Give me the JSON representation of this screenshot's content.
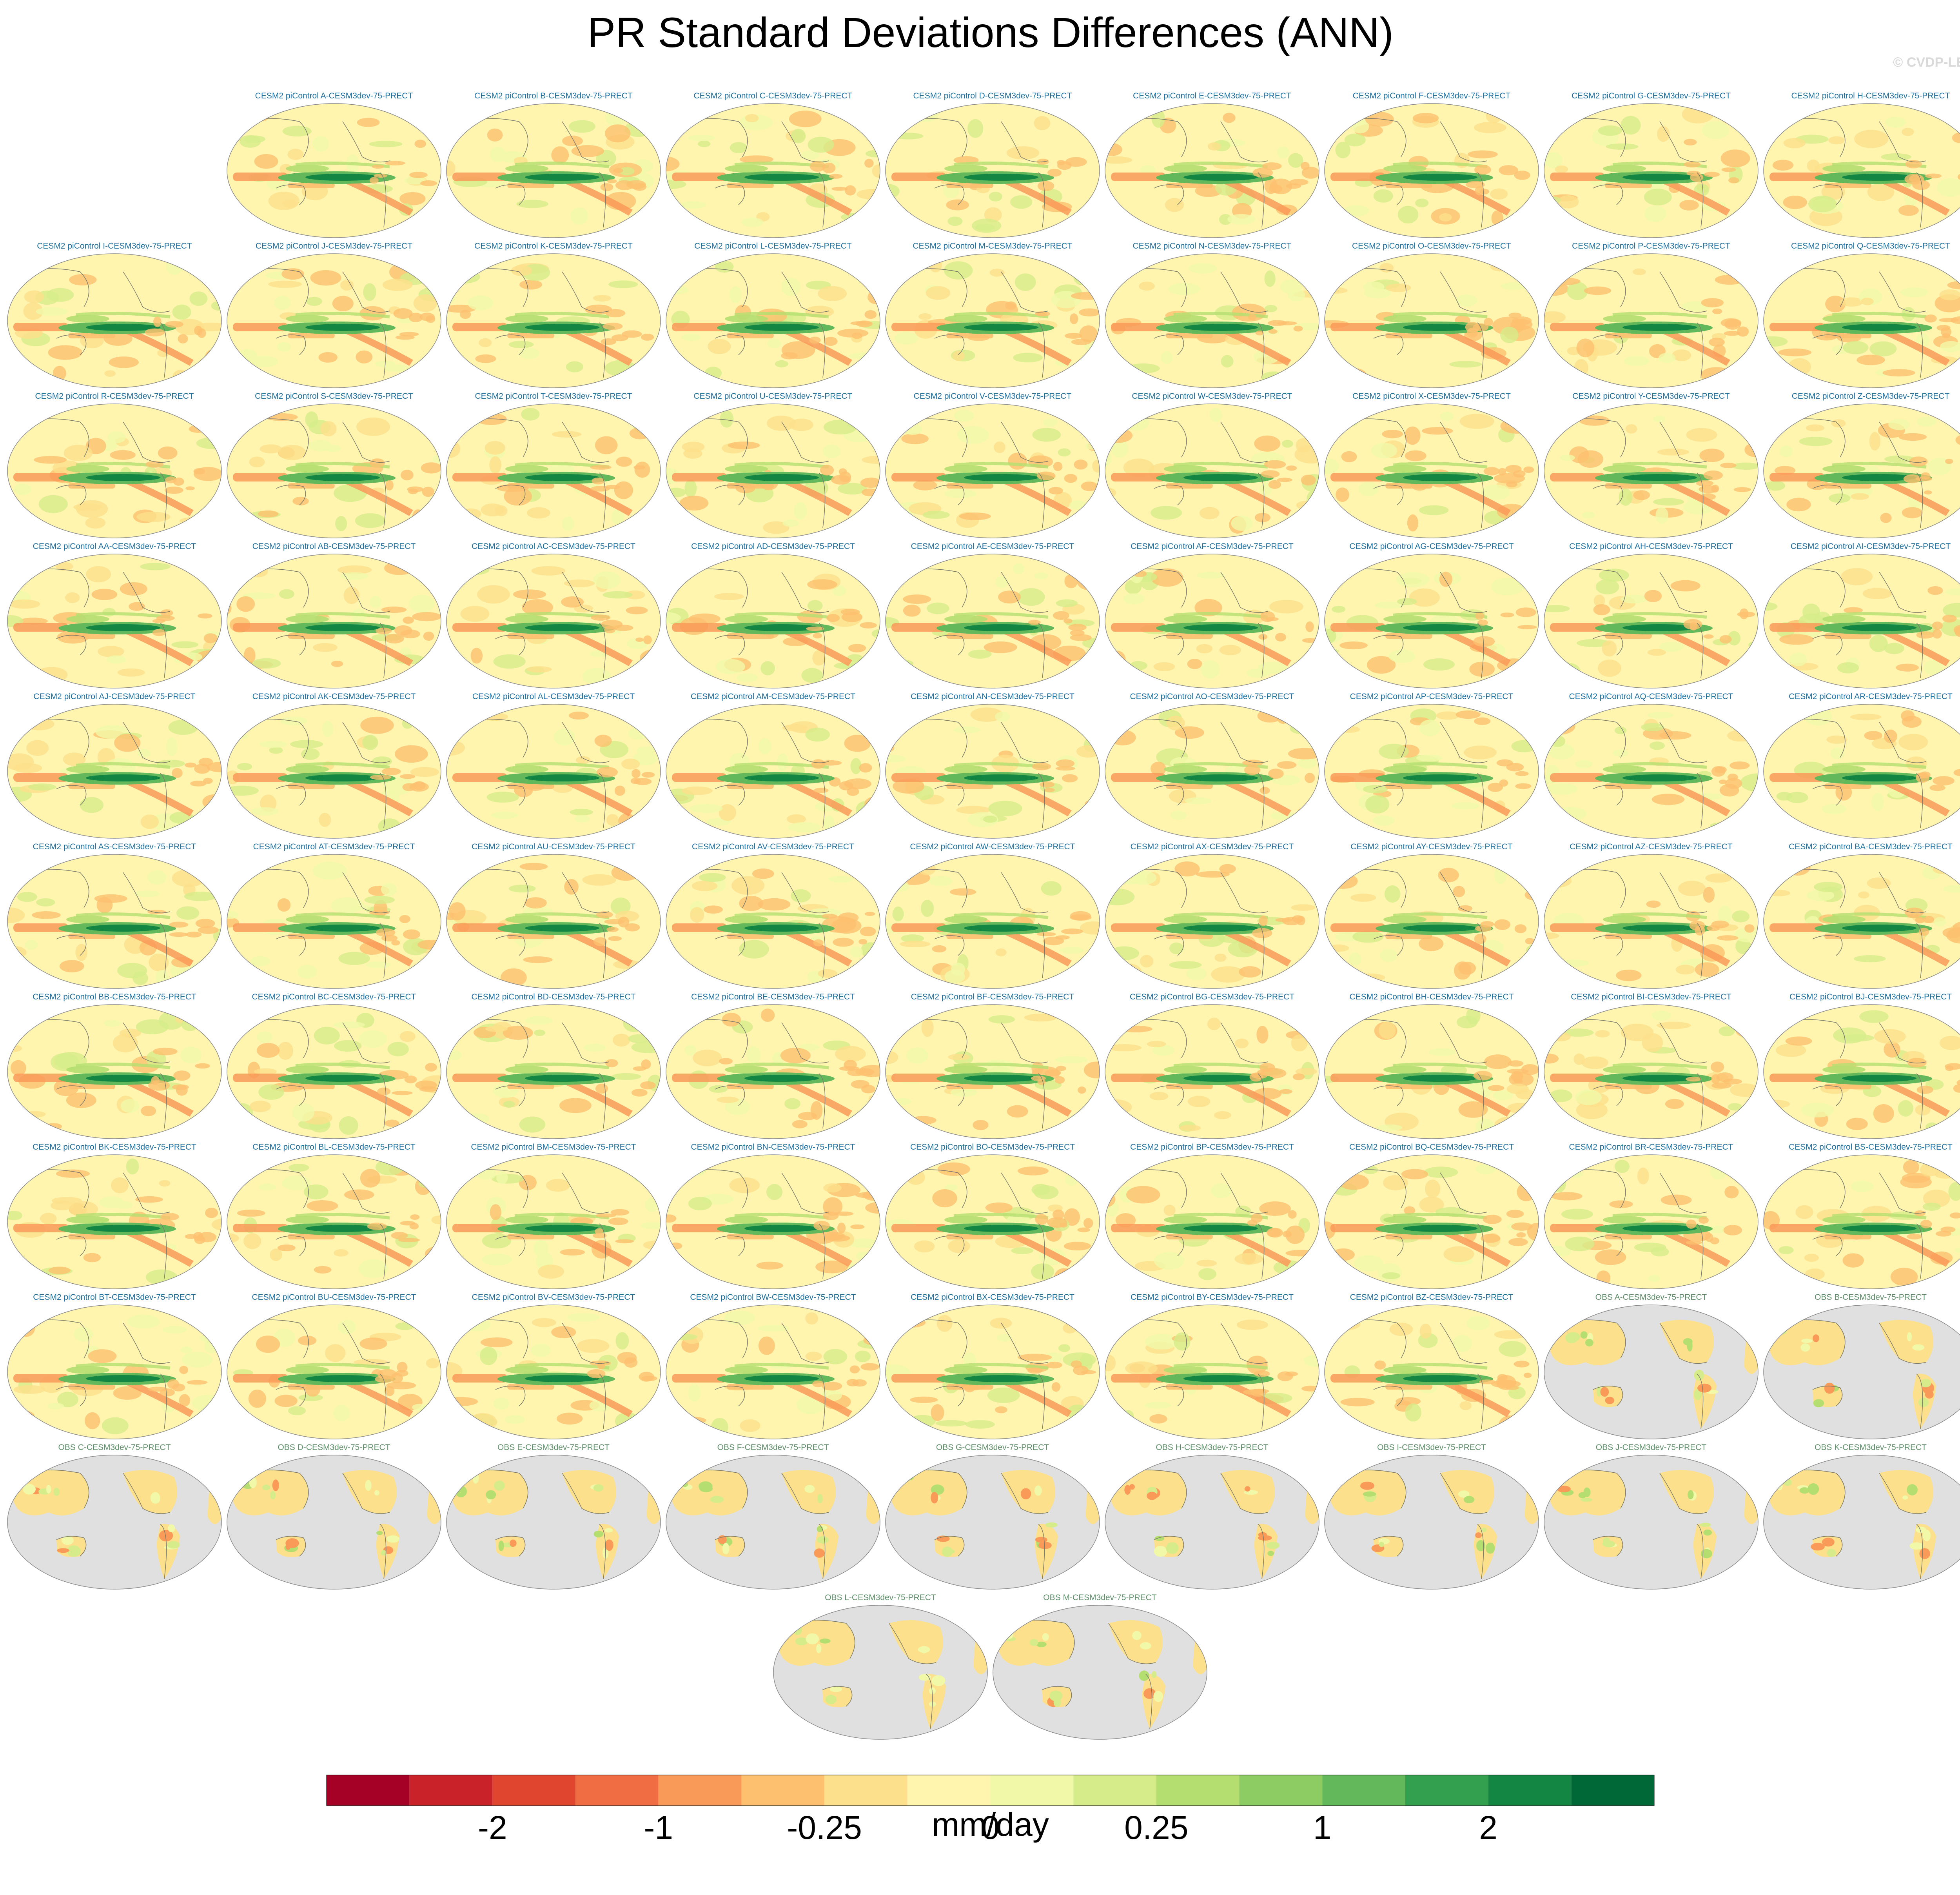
{
  "title": "PR Standard Deviations Differences (ANN)",
  "credit": "© CVDP-LE",
  "chart_data": {
    "type": "heatmap",
    "description_kind": "panel grid of global map differences",
    "variable": "PR standard deviation difference",
    "season": "ANN",
    "panels": [
      {
        "label": "CESM2 piControl A-CESM3dev-75-PRECT",
        "kind": "model"
      },
      {
        "label": "CESM2 piControl B-CESM3dev-75-PRECT",
        "kind": "model"
      },
      {
        "label": "CESM2 piControl C-CESM3dev-75-PRECT",
        "kind": "model"
      },
      {
        "label": "CESM2 piControl D-CESM3dev-75-PRECT",
        "kind": "model"
      },
      {
        "label": "CESM2 piControl E-CESM3dev-75-PRECT",
        "kind": "model"
      },
      {
        "label": "CESM2 piControl F-CESM3dev-75-PRECT",
        "kind": "model"
      },
      {
        "label": "CESM2 piControl G-CESM3dev-75-PRECT",
        "kind": "model"
      },
      {
        "label": "CESM2 piControl H-CESM3dev-75-PRECT",
        "kind": "model"
      },
      {
        "label": "CESM2 piControl I-CESM3dev-75-PRECT",
        "kind": "model"
      },
      {
        "label": "CESM2 piControl J-CESM3dev-75-PRECT",
        "kind": "model"
      },
      {
        "label": "CESM2 piControl K-CESM3dev-75-PRECT",
        "kind": "model"
      },
      {
        "label": "CESM2 piControl L-CESM3dev-75-PRECT",
        "kind": "model"
      },
      {
        "label": "CESM2 piControl M-CESM3dev-75-PRECT",
        "kind": "model"
      },
      {
        "label": "CESM2 piControl N-CESM3dev-75-PRECT",
        "kind": "model"
      },
      {
        "label": "CESM2 piControl O-CESM3dev-75-PRECT",
        "kind": "model"
      },
      {
        "label": "CESM2 piControl P-CESM3dev-75-PRECT",
        "kind": "model"
      },
      {
        "label": "CESM2 piControl Q-CESM3dev-75-PRECT",
        "kind": "model"
      },
      {
        "label": "CESM2 piControl R-CESM3dev-75-PRECT",
        "kind": "model"
      },
      {
        "label": "CESM2 piControl S-CESM3dev-75-PRECT",
        "kind": "model"
      },
      {
        "label": "CESM2 piControl T-CESM3dev-75-PRECT",
        "kind": "model"
      },
      {
        "label": "CESM2 piControl U-CESM3dev-75-PRECT",
        "kind": "model"
      },
      {
        "label": "CESM2 piControl V-CESM3dev-75-PRECT",
        "kind": "model"
      },
      {
        "label": "CESM2 piControl W-CESM3dev-75-PRECT",
        "kind": "model"
      },
      {
        "label": "CESM2 piControl X-CESM3dev-75-PRECT",
        "kind": "model"
      },
      {
        "label": "CESM2 piControl Y-CESM3dev-75-PRECT",
        "kind": "model"
      },
      {
        "label": "CESM2 piControl Z-CESM3dev-75-PRECT",
        "kind": "model"
      },
      {
        "label": "CESM2 piControl AA-CESM3dev-75-PRECT",
        "kind": "model"
      },
      {
        "label": "CESM2 piControl AB-CESM3dev-75-PRECT",
        "kind": "model"
      },
      {
        "label": "CESM2 piControl AC-CESM3dev-75-PRECT",
        "kind": "model"
      },
      {
        "label": "CESM2 piControl AD-CESM3dev-75-PRECT",
        "kind": "model"
      },
      {
        "label": "CESM2 piControl AE-CESM3dev-75-PRECT",
        "kind": "model"
      },
      {
        "label": "CESM2 piControl AF-CESM3dev-75-PRECT",
        "kind": "model"
      },
      {
        "label": "CESM2 piControl AG-CESM3dev-75-PRECT",
        "kind": "model"
      },
      {
        "label": "CESM2 piControl AH-CESM3dev-75-PRECT",
        "kind": "model"
      },
      {
        "label": "CESM2 piControl AI-CESM3dev-75-PRECT",
        "kind": "model"
      },
      {
        "label": "CESM2 piControl AJ-CESM3dev-75-PRECT",
        "kind": "model"
      },
      {
        "label": "CESM2 piControl AK-CESM3dev-75-PRECT",
        "kind": "model"
      },
      {
        "label": "CESM2 piControl AL-CESM3dev-75-PRECT",
        "kind": "model"
      },
      {
        "label": "CESM2 piControl AM-CESM3dev-75-PRECT",
        "kind": "model"
      },
      {
        "label": "CESM2 piControl AN-CESM3dev-75-PRECT",
        "kind": "model"
      },
      {
        "label": "CESM2 piControl AO-CESM3dev-75-PRECT",
        "kind": "model"
      },
      {
        "label": "CESM2 piControl AP-CESM3dev-75-PRECT",
        "kind": "model"
      },
      {
        "label": "CESM2 piControl AQ-CESM3dev-75-PRECT",
        "kind": "model"
      },
      {
        "label": "CESM2 piControl AR-CESM3dev-75-PRECT",
        "kind": "model"
      },
      {
        "label": "CESM2 piControl AS-CESM3dev-75-PRECT",
        "kind": "model"
      },
      {
        "label": "CESM2 piControl AT-CESM3dev-75-PRECT",
        "kind": "model"
      },
      {
        "label": "CESM2 piControl AU-CESM3dev-75-PRECT",
        "kind": "model"
      },
      {
        "label": "CESM2 piControl AV-CESM3dev-75-PRECT",
        "kind": "model"
      },
      {
        "label": "CESM2 piControl AW-CESM3dev-75-PRECT",
        "kind": "model"
      },
      {
        "label": "CESM2 piControl AX-CESM3dev-75-PRECT",
        "kind": "model"
      },
      {
        "label": "CESM2 piControl AY-CESM3dev-75-PRECT",
        "kind": "model"
      },
      {
        "label": "CESM2 piControl AZ-CESM3dev-75-PRECT",
        "kind": "model"
      },
      {
        "label": "CESM2 piControl BA-CESM3dev-75-PRECT",
        "kind": "model"
      },
      {
        "label": "CESM2 piControl BB-CESM3dev-75-PRECT",
        "kind": "model"
      },
      {
        "label": "CESM2 piControl BC-CESM3dev-75-PRECT",
        "kind": "model"
      },
      {
        "label": "CESM2 piControl BD-CESM3dev-75-PRECT",
        "kind": "model"
      },
      {
        "label": "CESM2 piControl BE-CESM3dev-75-PRECT",
        "kind": "model"
      },
      {
        "label": "CESM2 piControl BF-CESM3dev-75-PRECT",
        "kind": "model"
      },
      {
        "label": "CESM2 piControl BG-CESM3dev-75-PRECT",
        "kind": "model"
      },
      {
        "label": "CESM2 piControl BH-CESM3dev-75-PRECT",
        "kind": "model"
      },
      {
        "label": "CESM2 piControl BI-CESM3dev-75-PRECT",
        "kind": "model"
      },
      {
        "label": "CESM2 piControl BJ-CESM3dev-75-PRECT",
        "kind": "model"
      },
      {
        "label": "CESM2 piControl BK-CESM3dev-75-PRECT",
        "kind": "model"
      },
      {
        "label": "CESM2 piControl BL-CESM3dev-75-PRECT",
        "kind": "model"
      },
      {
        "label": "CESM2 piControl BM-CESM3dev-75-PRECT",
        "kind": "model"
      },
      {
        "label": "CESM2 piControl BN-CESM3dev-75-PRECT",
        "kind": "model"
      },
      {
        "label": "CESM2 piControl BO-CESM3dev-75-PRECT",
        "kind": "model"
      },
      {
        "label": "CESM2 piControl BP-CESM3dev-75-PRECT",
        "kind": "model"
      },
      {
        "label": "CESM2 piControl BQ-CESM3dev-75-PRECT",
        "kind": "model"
      },
      {
        "label": "CESM2 piControl BR-CESM3dev-75-PRECT",
        "kind": "model"
      },
      {
        "label": "CESM2 piControl BS-CESM3dev-75-PRECT",
        "kind": "model"
      },
      {
        "label": "CESM2 piControl BT-CESM3dev-75-PRECT",
        "kind": "model"
      },
      {
        "label": "CESM2 piControl BU-CESM3dev-75-PRECT",
        "kind": "model"
      },
      {
        "label": "CESM2 piControl BV-CESM3dev-75-PRECT",
        "kind": "model"
      },
      {
        "label": "CESM2 piControl BW-CESM3dev-75-PRECT",
        "kind": "model"
      },
      {
        "label": "CESM2 piControl BX-CESM3dev-75-PRECT",
        "kind": "model"
      },
      {
        "label": "CESM2 piControl BY-CESM3dev-75-PRECT",
        "kind": "model"
      },
      {
        "label": "CESM2 piControl BZ-CESM3dev-75-PRECT",
        "kind": "model"
      },
      {
        "label": "OBS A-CESM3dev-75-PRECT",
        "kind": "obs"
      },
      {
        "label": "OBS B-CESM3dev-75-PRECT",
        "kind": "obs"
      },
      {
        "label": "OBS C-CESM3dev-75-PRECT",
        "kind": "obs"
      },
      {
        "label": "OBS D-CESM3dev-75-PRECT",
        "kind": "obs"
      },
      {
        "label": "OBS E-CESM3dev-75-PRECT",
        "kind": "obs"
      },
      {
        "label": "OBS F-CESM3dev-75-PRECT",
        "kind": "obs"
      },
      {
        "label": "OBS G-CESM3dev-75-PRECT",
        "kind": "obs"
      },
      {
        "label": "OBS H-CESM3dev-75-PRECT",
        "kind": "obs"
      },
      {
        "label": "OBS I-CESM3dev-75-PRECT",
        "kind": "obs"
      },
      {
        "label": "OBS J-CESM3dev-75-PRECT",
        "kind": "obs"
      },
      {
        "label": "OBS K-CESM3dev-75-PRECT",
        "kind": "obs"
      },
      {
        "label": "OBS L-CESM3dev-75-PRECT",
        "kind": "obs"
      },
      {
        "label": "OBS M-CESM3dev-75-PRECT",
        "kind": "obs"
      }
    ],
    "colorbar": {
      "units": "mm/day",
      "tick_labels": [
        "-2",
        "-1",
        "-0.25",
        "0",
        "0.25",
        "1",
        "2"
      ],
      "colors": [
        "#a50026",
        "#c92228",
        "#e04530",
        "#f06d44",
        "#f99a59",
        "#fcc06f",
        "#fde08b",
        "#fff5af",
        "#f1f9a9",
        "#d6ec8a",
        "#b4de70",
        "#8dcc63",
        "#62b85b",
        "#33a04f",
        "#138643",
        "#006837"
      ],
      "missing_color": "#e0e0e0"
    }
  }
}
